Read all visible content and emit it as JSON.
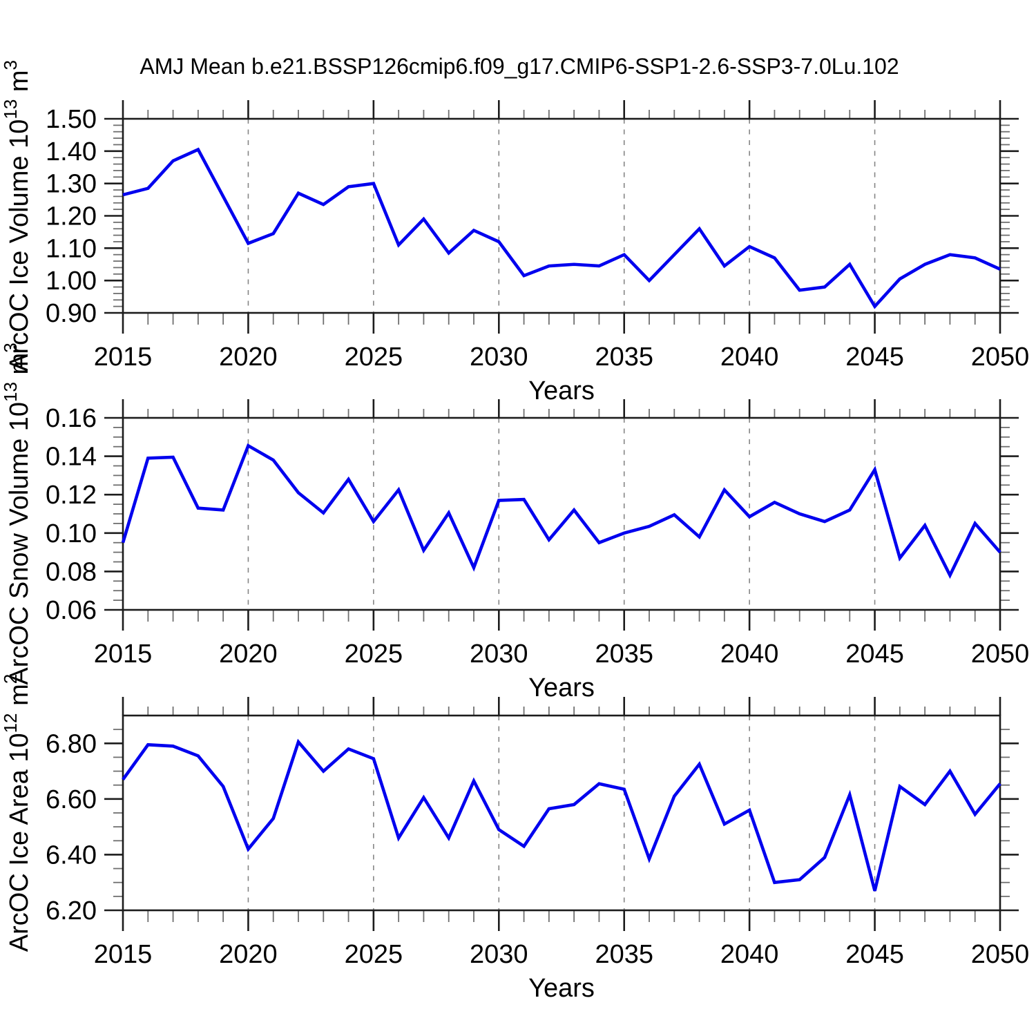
{
  "title": "AMJ Mean b.e21.BSSP126cmip6.f09_g17.CMIP6-SSP1-2.6-SSP3-7.0Lu.102",
  "style": {
    "line_color": "#0000ee",
    "frame_color": "#1c1c1c",
    "major_tick_color": "#1c1c1c",
    "minor_tick_color": "#6f6f6f",
    "grid_color": "#858585",
    "text_color": "#000000",
    "background": "#ffffff"
  },
  "chart_data": [
    {
      "id": "ice-volume",
      "type": "line",
      "ylabel": "ArcOC Ice Volume 10^{13} m^{3}",
      "xlabel": "Years",
      "legend": "none",
      "grid": "vertical-dashed",
      "x": [
        2015,
        2016,
        2017,
        2018,
        2019,
        2020,
        2021,
        2022,
        2023,
        2024,
        2025,
        2026,
        2027,
        2028,
        2029,
        2030,
        2031,
        2032,
        2033,
        2034,
        2035,
        2036,
        2037,
        2038,
        2039,
        2040,
        2041,
        2042,
        2043,
        2044,
        2045,
        2046,
        2047,
        2048,
        2049,
        2050
      ],
      "values": [
        1.265,
        1.285,
        1.37,
        1.405,
        1.26,
        1.115,
        1.145,
        1.27,
        1.235,
        1.29,
        1.3,
        1.11,
        1.19,
        1.085,
        1.155,
        1.12,
        1.015,
        1.045,
        1.05,
        1.045,
        1.08,
        1.0,
        1.08,
        1.16,
        1.045,
        1.105,
        1.07,
        0.97,
        0.98,
        1.05,
        0.92,
        1.005,
        1.05,
        1.08,
        1.07,
        1.035
      ],
      "ylim": [
        0.9,
        1.5
      ],
      "ytick_step": 0.1,
      "yminor_step": 0.02,
      "ytick_decimals": 2,
      "yticks": [
        0.9,
        1.0,
        1.1,
        1.2,
        1.3,
        1.4,
        1.5
      ],
      "xlim": [
        2015,
        2050
      ],
      "xtick_step": 5,
      "xminor_step": 1,
      "xticks": [
        2015,
        2020,
        2025,
        2030,
        2035,
        2040,
        2045,
        2050
      ],
      "grid_x_dashed": [
        2020,
        2025,
        2030,
        2035,
        2040,
        2045
      ]
    },
    {
      "id": "snow-volume",
      "type": "line",
      "ylabel": "ArcOC Snow Volume 10^{13} m^{3}",
      "xlabel": "Years",
      "legend": "none",
      "grid": "vertical-dashed",
      "x": [
        2015,
        2016,
        2017,
        2018,
        2019,
        2020,
        2021,
        2022,
        2023,
        2024,
        2025,
        2026,
        2027,
        2028,
        2029,
        2030,
        2031,
        2032,
        2033,
        2034,
        2035,
        2036,
        2037,
        2038,
        2039,
        2040,
        2041,
        2042,
        2043,
        2044,
        2045,
        2046,
        2047,
        2048,
        2049,
        2050
      ],
      "values": [
        0.095,
        0.139,
        0.1395,
        0.113,
        0.112,
        0.1455,
        0.138,
        0.121,
        0.1105,
        0.128,
        0.106,
        0.1225,
        0.091,
        0.1105,
        0.082,
        0.117,
        0.1175,
        0.0965,
        0.112,
        0.095,
        0.1,
        0.1035,
        0.1095,
        0.098,
        0.1225,
        0.1085,
        0.116,
        0.11,
        0.106,
        0.112,
        0.133,
        0.087,
        0.104,
        0.078,
        0.105,
        0.09
      ],
      "ylim": [
        0.06,
        0.16
      ],
      "ytick_step": 0.02,
      "yminor_step": 0.005,
      "ytick_decimals": 2,
      "yticks": [
        0.06,
        0.08,
        0.1,
        0.12,
        0.14,
        0.16
      ],
      "xlim": [
        2015,
        2050
      ],
      "xtick_step": 5,
      "xminor_step": 1,
      "xticks": [
        2015,
        2020,
        2025,
        2030,
        2035,
        2040,
        2045,
        2050
      ],
      "grid_x_dashed": [
        2020,
        2025,
        2030,
        2035,
        2040,
        2045
      ]
    },
    {
      "id": "ice-area",
      "type": "line",
      "ylabel": "ArcOC Ice Area 10^{12} m^{2}",
      "xlabel": "Years",
      "legend": "none",
      "grid": "vertical-dashed",
      "x": [
        2015,
        2016,
        2017,
        2018,
        2019,
        2020,
        2021,
        2022,
        2023,
        2024,
        2025,
        2026,
        2027,
        2028,
        2029,
        2030,
        2031,
        2032,
        2033,
        2034,
        2035,
        2036,
        2037,
        2038,
        2039,
        2040,
        2041,
        2042,
        2043,
        2044,
        2045,
        2046,
        2047,
        2048,
        2049,
        2050
      ],
      "values": [
        6.67,
        6.795,
        6.79,
        6.755,
        6.645,
        6.42,
        6.53,
        6.805,
        6.7,
        6.78,
        6.745,
        6.46,
        6.605,
        6.46,
        6.665,
        6.49,
        6.43,
        6.565,
        6.58,
        6.655,
        6.635,
        6.385,
        6.61,
        6.725,
        6.51,
        6.56,
        6.3,
        6.31,
        6.39,
        6.615,
        6.27,
        6.645,
        6.58,
        6.7,
        6.545,
        6.655
      ],
      "ylim": [
        6.2,
        6.9
      ],
      "ytick_step": 0.2,
      "yminor_step": 0.05,
      "ytick_decimals": 2,
      "yticks": [
        6.2,
        6.4,
        6.6,
        6.8
      ],
      "xlim": [
        2015,
        2050
      ],
      "xtick_step": 5,
      "xminor_step": 1,
      "xticks": [
        2015,
        2020,
        2025,
        2030,
        2035,
        2040,
        2045,
        2050
      ],
      "grid_x_dashed": [
        2020,
        2025,
        2030,
        2035,
        2040,
        2045
      ]
    }
  ]
}
